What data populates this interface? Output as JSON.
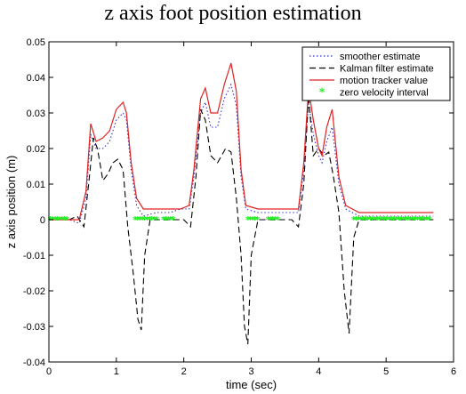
{
  "chart_data": {
    "type": "line",
    "title": "z axis foot position estimation",
    "xlabel": "time (sec)",
    "ylabel": "z axis position (m)",
    "xlim": [
      0,
      6
    ],
    "ylim": [
      -0.04,
      0.05
    ],
    "x_ticks": [
      "0",
      "1",
      "2",
      "3",
      "4",
      "5",
      "6"
    ],
    "y_ticks": [
      "-0.04",
      "-0.03",
      "-0.02",
      "-0.01",
      "0",
      "0.01",
      "0.02",
      "0.03",
      "0.04",
      "0.05"
    ],
    "grid": false,
    "legend_position": "top-right",
    "series": [
      {
        "name": "smoother estimate",
        "style": "dotted",
        "color": "#3333cc",
        "points": [
          [
            0,
            0
          ],
          [
            0.3,
            0
          ],
          [
            0.45,
            -0.001
          ],
          [
            0.55,
            0.006
          ],
          [
            0.62,
            0.024
          ],
          [
            0.7,
            0.02
          ],
          [
            0.8,
            0.02
          ],
          [
            0.9,
            0.022
          ],
          [
            1.0,
            0.028
          ],
          [
            1.1,
            0.03
          ],
          [
            1.15,
            0.028
          ],
          [
            1.22,
            0.014
          ],
          [
            1.3,
            0.004
          ],
          [
            1.4,
            0.001
          ],
          [
            1.6,
            0.002
          ],
          [
            1.8,
            0.002
          ],
          [
            1.95,
            0.003
          ],
          [
            2.08,
            0.003
          ],
          [
            2.15,
            0.012
          ],
          [
            2.25,
            0.03
          ],
          [
            2.32,
            0.033
          ],
          [
            2.4,
            0.026
          ],
          [
            2.5,
            0.026
          ],
          [
            2.6,
            0.034
          ],
          [
            2.7,
            0.038
          ],
          [
            2.78,
            0.032
          ],
          [
            2.85,
            0.012
          ],
          [
            2.92,
            0.003
          ],
          [
            3.1,
            0.002
          ],
          [
            3.4,
            0.002
          ],
          [
            3.6,
            0.002
          ],
          [
            3.7,
            0.002
          ],
          [
            3.78,
            0.014
          ],
          [
            3.85,
            0.033
          ],
          [
            3.92,
            0.024
          ],
          [
            4.0,
            0.018
          ],
          [
            4.05,
            0.016
          ],
          [
            4.12,
            0.022
          ],
          [
            4.2,
            0.026
          ],
          [
            4.3,
            0.01
          ],
          [
            4.4,
            0.003
          ],
          [
            4.6,
            0.001
          ],
          [
            5.0,
            0.001
          ],
          [
            5.7,
            0.001
          ]
        ]
      },
      {
        "name": "Kalman filter estimate",
        "style": "dashed",
        "color": "#000000",
        "points": [
          [
            0,
            0
          ],
          [
            0.3,
            0
          ],
          [
            0.42,
            0.001
          ],
          [
            0.52,
            -0.002
          ],
          [
            0.6,
            0.012
          ],
          [
            0.66,
            0.023
          ],
          [
            0.72,
            0.02
          ],
          [
            0.8,
            0.011
          ],
          [
            0.88,
            0.013
          ],
          [
            0.95,
            0.016
          ],
          [
            1.02,
            0.017
          ],
          [
            1.1,
            0.014
          ],
          [
            1.17,
            -0.002
          ],
          [
            1.25,
            -0.015
          ],
          [
            1.32,
            -0.028
          ],
          [
            1.37,
            -0.031
          ],
          [
            1.42,
            -0.01
          ],
          [
            1.5,
            0
          ],
          [
            1.8,
            0
          ],
          [
            2.0,
            0
          ],
          [
            2.1,
            -0.002
          ],
          [
            2.18,
            0.012
          ],
          [
            2.25,
            0.031
          ],
          [
            2.32,
            0.028
          ],
          [
            2.4,
            0.018
          ],
          [
            2.5,
            0.016
          ],
          [
            2.62,
            0.02
          ],
          [
            2.7,
            0.019
          ],
          [
            2.78,
            0.006
          ],
          [
            2.85,
            -0.01
          ],
          [
            2.9,
            -0.03
          ],
          [
            2.95,
            -0.035
          ],
          [
            3.0,
            -0.01
          ],
          [
            3.1,
            0
          ],
          [
            3.4,
            0
          ],
          [
            3.6,
            0
          ],
          [
            3.7,
            -0.002
          ],
          [
            3.78,
            0.01
          ],
          [
            3.85,
            0.035
          ],
          [
            3.92,
            0.018
          ],
          [
            4.0,
            0.02
          ],
          [
            4.08,
            0.018
          ],
          [
            4.15,
            0.019
          ],
          [
            4.22,
            0.012
          ],
          [
            4.3,
            0.002
          ],
          [
            4.38,
            -0.02
          ],
          [
            4.45,
            -0.032
          ],
          [
            4.52,
            -0.005
          ],
          [
            4.6,
            0
          ],
          [
            5.0,
            0
          ],
          [
            5.7,
            0
          ]
        ]
      },
      {
        "name": "motion tracker value",
        "style": "solid",
        "color": "#e02020",
        "points": [
          [
            0,
            0
          ],
          [
            0.3,
            0
          ],
          [
            0.45,
            0
          ],
          [
            0.55,
            0.008
          ],
          [
            0.62,
            0.027
          ],
          [
            0.7,
            0.022
          ],
          [
            0.8,
            0.023
          ],
          [
            0.9,
            0.025
          ],
          [
            1.0,
            0.031
          ],
          [
            1.1,
            0.033
          ],
          [
            1.15,
            0.03
          ],
          [
            1.22,
            0.016
          ],
          [
            1.3,
            0.006
          ],
          [
            1.4,
            0.003
          ],
          [
            1.6,
            0.003
          ],
          [
            1.8,
            0.003
          ],
          [
            1.95,
            0.003
          ],
          [
            2.08,
            0.004
          ],
          [
            2.15,
            0.014
          ],
          [
            2.25,
            0.034
          ],
          [
            2.32,
            0.037
          ],
          [
            2.4,
            0.03
          ],
          [
            2.5,
            0.03
          ],
          [
            2.6,
            0.038
          ],
          [
            2.7,
            0.044
          ],
          [
            2.78,
            0.036
          ],
          [
            2.85,
            0.014
          ],
          [
            2.92,
            0.004
          ],
          [
            3.1,
            0.003
          ],
          [
            3.4,
            0.003
          ],
          [
            3.6,
            0.003
          ],
          [
            3.7,
            0.003
          ],
          [
            3.78,
            0.016
          ],
          [
            3.85,
            0.037
          ],
          [
            3.92,
            0.028
          ],
          [
            4.0,
            0.02
          ],
          [
            4.05,
            0.018
          ],
          [
            4.12,
            0.026
          ],
          [
            4.2,
            0.031
          ],
          [
            4.3,
            0.012
          ],
          [
            4.4,
            0.004
          ],
          [
            4.6,
            0.002
          ],
          [
            5.0,
            0.002
          ],
          [
            5.7,
            0.002
          ]
        ]
      },
      {
        "name": "zero velocity interval",
        "style": "markers",
        "color": "#22ee22",
        "intervals": [
          [
            0.02,
            0.27
          ],
          [
            1.28,
            1.6
          ],
          [
            1.7,
            1.85
          ],
          [
            2.95,
            3.1
          ],
          [
            3.25,
            3.42
          ],
          [
            4.52,
            5.65
          ]
        ],
        "value": 0
      }
    ]
  }
}
